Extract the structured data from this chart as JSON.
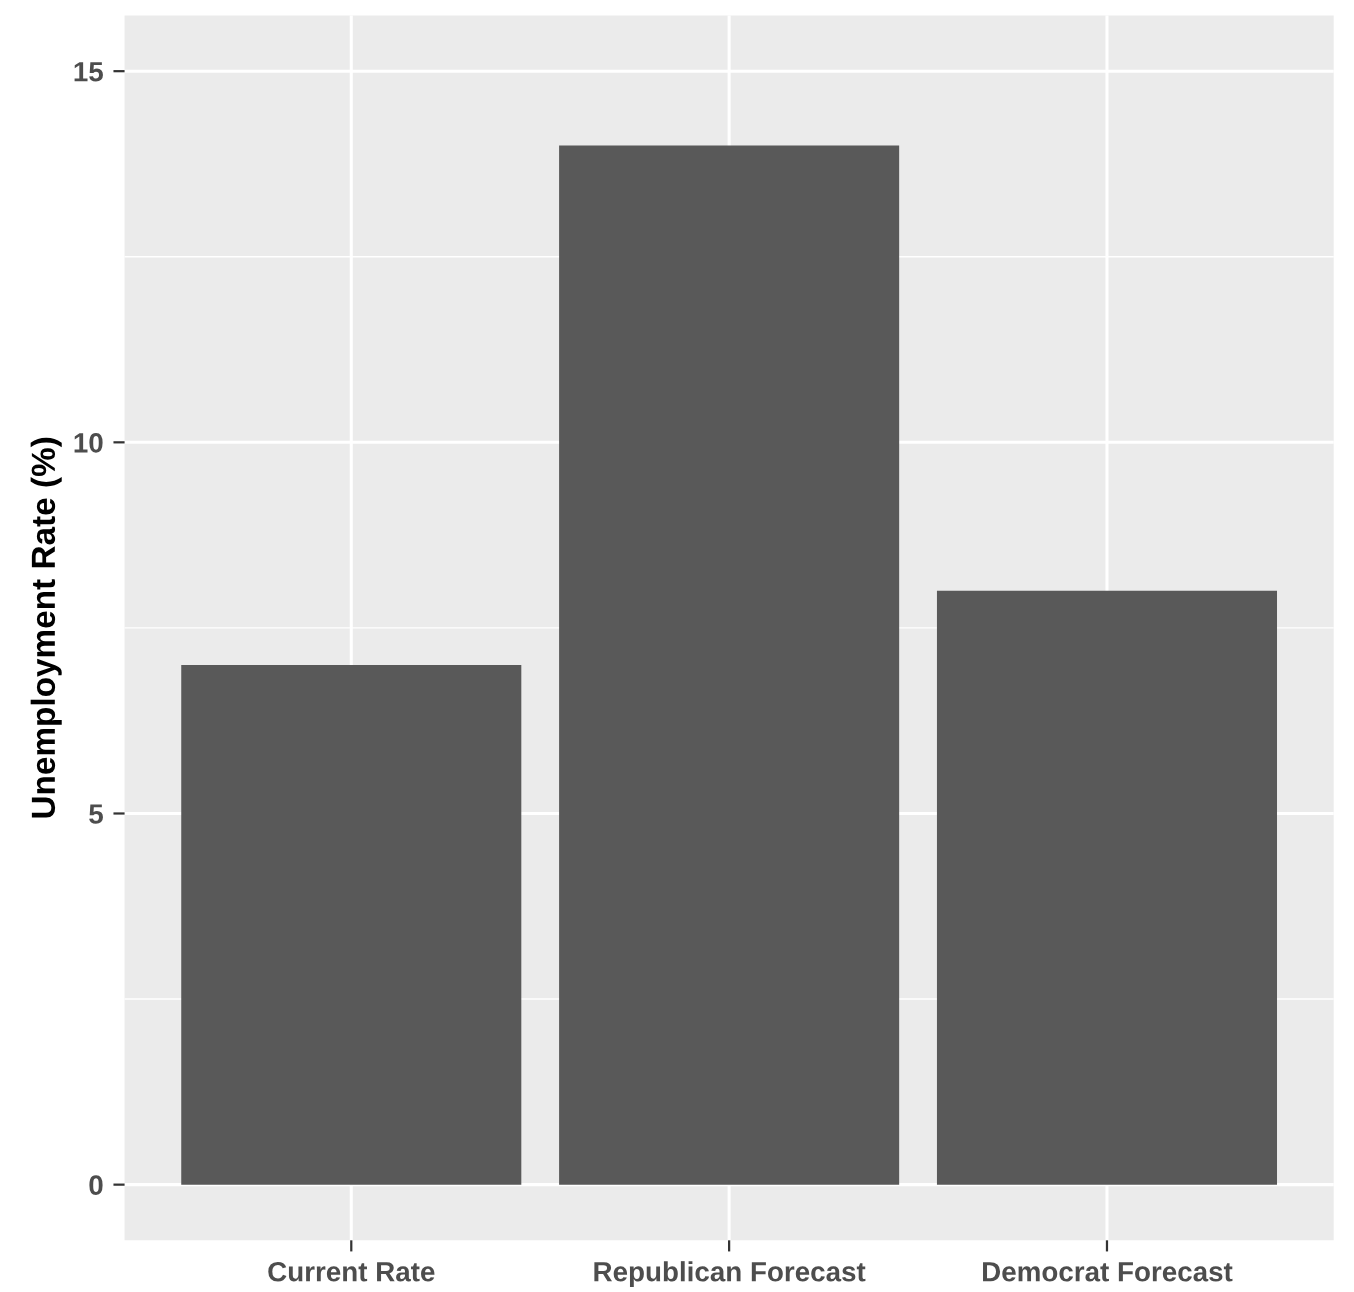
{
  "chart_data": {
    "type": "bar",
    "ylabel": "Unemployment Rate (%)",
    "categories": [
      "Current Rate",
      "Republican Forecast",
      "Democrat Forecast"
    ],
    "values": [
      7,
      14,
      8
    ],
    "color": "#595959",
    "ylim": [
      -0.75,
      15.75
    ],
    "yticks": [
      0,
      5,
      10,
      15
    ],
    "grid": true,
    "legend": false
  }
}
